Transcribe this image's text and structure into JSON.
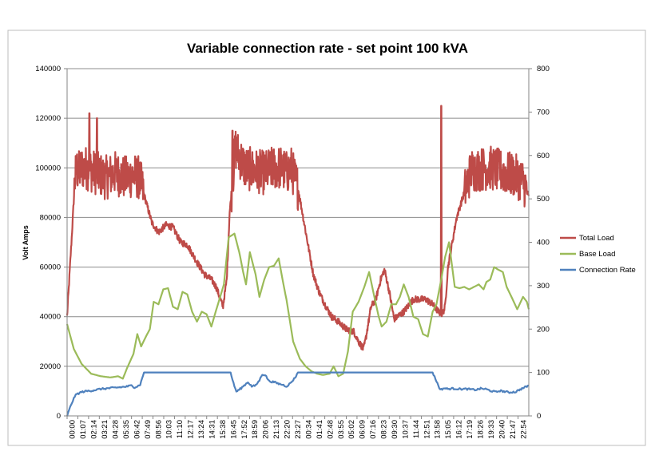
{
  "chart_data": {
    "type": "line",
    "title": "Variable connection rate - set point 100 kVA",
    "ylabel": "Volt Amps",
    "ylabel_right": "",
    "xlabel": "",
    "ylim": [
      0,
      140000
    ],
    "ylim_right": [
      0,
      800
    ],
    "yticks": [
      "0",
      "20000",
      "40000",
      "60000",
      "80000",
      "100000",
      "120000",
      "140000"
    ],
    "yticks_right": [
      "0",
      "100",
      "200",
      "300",
      "400",
      "500",
      "600",
      "700",
      "800"
    ],
    "x_tick_labels": [
      "00:00",
      "01:07",
      "02:14",
      "03:21",
      "04:28",
      "05:35",
      "06:42",
      "07:49",
      "08:56",
      "10:03",
      "11:10",
      "12:17",
      "13:24",
      "14:31",
      "15:38",
      "16:45",
      "17:52",
      "18:59",
      "20:06",
      "21:13",
      "22:20",
      "23:27",
      "00:34",
      "01:41",
      "02:48",
      "03:55",
      "05:02",
      "06:09",
      "07:16",
      "08:23",
      "09:30",
      "10:37",
      "11:44",
      "12:51",
      "13:58",
      "15:05",
      "16:12",
      "17:19",
      "18:26",
      "19:33",
      "20:40",
      "21:47",
      "22:54"
    ],
    "x_range_hours": [
      0,
      48
    ],
    "grid": true,
    "legend_position": "right",
    "series": [
      {
        "name": "Total Load",
        "axis": "left",
        "color": "#be4b48",
        "noise_amplitude": 9000,
        "hours": [
          0,
          0.3,
          0.6,
          0.8,
          1,
          1.2,
          1.5,
          2,
          3,
          4,
          5,
          6,
          7,
          7.5,
          7.8,
          8.3,
          8.8,
          9.5,
          10.3,
          11,
          11.8,
          12.5,
          13.5,
          14.3,
          15,
          15.5,
          16.2,
          16.6,
          16.9,
          17.5,
          18.5,
          19.5,
          20.5,
          21.5,
          22.3,
          22.8,
          23.3,
          24,
          25,
          25.6,
          26.2,
          26.8,
          27.5,
          28.2,
          29,
          29.8,
          30.3,
          30.8,
          31,
          31.6,
          32.1,
          32.6,
          33,
          33.5,
          34,
          35,
          36,
          37.3,
          38,
          38.6,
          39,
          39.3,
          39.6,
          40.5,
          42,
          44,
          45.5,
          46.5,
          47.3,
          47.7,
          48
        ],
        "values": [
          40000,
          60000,
          80000,
          95000,
          100000,
          98000,
          100000,
          100000,
          98000,
          96000,
          98000,
          96000,
          97000,
          96000,
          92000,
          85000,
          78000,
          74000,
          77000,
          76000,
          70000,
          69000,
          62000,
          57000,
          55000,
          52000,
          44000,
          55000,
          82000,
          108000,
          100000,
          99000,
          98000,
          100000,
          100000,
          98000,
          100000,
          92000,
          70000,
          57000,
          50000,
          45000,
          40000,
          38000,
          35000,
          34000,
          30000,
          27000,
          30000,
          44000,
          47000,
          55000,
          59000,
          50000,
          39000,
          42000,
          47000,
          47000,
          45000,
          42000,
          41000,
          44000,
          60000,
          80000,
          99000,
          100000,
          98000,
          97000,
          95000,
          92000,
          88000
        ],
        "spikes": [
          [
            2.3,
            122000
          ],
          [
            38.9,
            125000
          ],
          [
            17.2,
            115000
          ],
          [
            3.1,
            120000
          ]
        ]
      },
      {
        "name": "Base Load",
        "axis": "left",
        "color": "#9bbb59",
        "hours": [
          0,
          0.7,
          1.5,
          2.5,
          3.5,
          4.5,
          5.3,
          5.8,
          6.2,
          6.9,
          7.3,
          7.7,
          8.2,
          8.6,
          9,
          9.5,
          10,
          10.5,
          11,
          11.5,
          12,
          12.5,
          13,
          13.5,
          14,
          14.5,
          15,
          15.6,
          16.3,
          16.8,
          17.4,
          17.9,
          18.3,
          18.6,
          19,
          19.6,
          20,
          20.5,
          21,
          21.5,
          22,
          22.4,
          22.8,
          23.5,
          24.2,
          24.8,
          25.4,
          26,
          26.6,
          27.3,
          27.7,
          28.2,
          28.7,
          29.2,
          29.7,
          30.3,
          30.9,
          31.4,
          32,
          32.4,
          32.7,
          33.2,
          33.7,
          34.2,
          34.6,
          35,
          35.5,
          36,
          36.5,
          37,
          37.5,
          38,
          38.4,
          38.9,
          39.3,
          39.7,
          40.3,
          40.8,
          41.3,
          41.8,
          42.3,
          42.8,
          43.3,
          43.6,
          44,
          44.4,
          44.8,
          45.3,
          45.7,
          46.2,
          46.8,
          47.4,
          47.8,
          48
        ],
        "values": [
          37000,
          27000,
          21000,
          17000,
          16000,
          15500,
          16000,
          15000,
          19000,
          25000,
          33000,
          28000,
          32000,
          35000,
          46000,
          45000,
          51000,
          51500,
          44000,
          43000,
          50000,
          49000,
          42000,
          38000,
          42000,
          41000,
          36000,
          44000,
          53000,
          72000,
          73500,
          66000,
          58000,
          53000,
          66000,
          57000,
          48000,
          55000,
          60000,
          60500,
          63500,
          55000,
          47000,
          30000,
          23000,
          20000,
          18000,
          17000,
          16500,
          17000,
          20000,
          16000,
          17000,
          26000,
          42000,
          46000,
          52000,
          58000,
          47000,
          40000,
          36000,
          38000,
          45000,
          45000,
          48000,
          53000,
          48000,
          40000,
          39000,
          33000,
          32000,
          42000,
          45000,
          55000,
          64000,
          70000,
          52000,
          51500,
          52000,
          51000,
          52000,
          53000,
          51000,
          54000,
          55000,
          60000,
          59000,
          58000,
          52000,
          48000,
          43000,
          48000,
          46000,
          43000
        ]
      },
      {
        "name": "Connection Rate",
        "axis": "right",
        "color": "#4f81bd",
        "hours": [
          0,
          0.4,
          0.8,
          1,
          1.5,
          2,
          2.5,
          3,
          3.5,
          4,
          4.5,
          5,
          5.5,
          6,
          6.3,
          6.7,
          7,
          7.3,
          7.6,
          8,
          9,
          10,
          12,
          14,
          16,
          17,
          17.3,
          17.6,
          18,
          18.5,
          18.8,
          19.2,
          19.6,
          20,
          20.3,
          20.6,
          21,
          21.5,
          22,
          22.4,
          22.8,
          23.2,
          23.7,
          24,
          25,
          30,
          35,
          38,
          38.5,
          38.8,
          39.2,
          39.6,
          40,
          41,
          41.5,
          42,
          42.5,
          43,
          43.5,
          44,
          44.6,
          45,
          45.5,
          46,
          46.3,
          46.6,
          47,
          47.5,
          48
        ],
        "values": [
          0,
          25,
          45,
          50,
          55,
          57,
          58,
          60,
          62,
          63,
          64,
          65,
          66,
          67,
          68,
          70,
          66,
          68,
          72,
          100,
          100,
          100,
          100,
          100,
          100,
          100,
          75,
          56,
          62,
          72,
          78,
          68,
          70,
          82,
          96,
          94,
          80,
          78,
          74,
          72,
          68,
          75,
          88,
          100,
          100,
          100,
          100,
          100,
          75,
          60,
          64,
          62,
          63,
          62,
          62,
          61,
          60,
          63,
          62,
          58,
          55,
          58,
          56,
          54,
          55,
          55,
          60,
          65,
          70
        ]
      }
    ]
  }
}
